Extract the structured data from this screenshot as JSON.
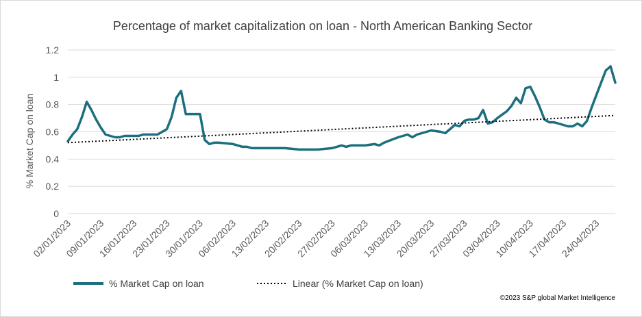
{
  "chart_data": {
    "type": "line",
    "title": "Percentage of market capitalization on loan - North American Banking Sector",
    "xlabel": "",
    "ylabel": "% Market Cap on loan",
    "ylim": [
      0,
      1.2
    ],
    "yticks": [
      0,
      0.2,
      0.4,
      0.6,
      0.8,
      1,
      1.2
    ],
    "ytick_labels": [
      "0",
      "0.2",
      "0.4",
      "0.6",
      "0.8",
      "1",
      "1.2"
    ],
    "xlim": [
      "2023-01-02",
      "2023-04-28"
    ],
    "xticks": [
      "2023-01-02",
      "2023-01-09",
      "2023-01-16",
      "2023-01-23",
      "2023-01-30",
      "2023-02-06",
      "2023-02-13",
      "2023-02-20",
      "2023-02-27",
      "2023-03-06",
      "2023-03-13",
      "2023-03-20",
      "2023-03-27",
      "2023-04-03",
      "2023-04-10",
      "2023-04-17",
      "2023-04-24"
    ],
    "xtick_labels": [
      "02/01/2023",
      "09/01/2023",
      "16/01/2023",
      "23/01/2023",
      "30/01/2023",
      "06/02/2023",
      "13/02/2023",
      "20/02/2023",
      "27/02/2023",
      "06/03/2023",
      "13/03/2023",
      "20/03/2023",
      "27/03/2023",
      "03/04/2023",
      "10/04/2023",
      "17/04/2023",
      "24/04/2023"
    ],
    "grid": true,
    "legend_position": "bottom-left",
    "series": [
      {
        "name": "% Market Cap on loan",
        "color": "#1b6f7e",
        "style": "solid",
        "points": [
          [
            "2023-01-02",
            0.53
          ],
          [
            "2023-01-03",
            0.58
          ],
          [
            "2023-01-04",
            0.62
          ],
          [
            "2023-01-05",
            0.71
          ],
          [
            "2023-01-06",
            0.82
          ],
          [
            "2023-01-07",
            0.76
          ],
          [
            "2023-01-08",
            0.69
          ],
          [
            "2023-01-09",
            0.63
          ],
          [
            "2023-01-10",
            0.58
          ],
          [
            "2023-01-11",
            0.57
          ],
          [
            "2023-01-12",
            0.56
          ],
          [
            "2023-01-13",
            0.56
          ],
          [
            "2023-01-14",
            0.57
          ],
          [
            "2023-01-15",
            0.57
          ],
          [
            "2023-01-16",
            0.57
          ],
          [
            "2023-01-17",
            0.57
          ],
          [
            "2023-01-18",
            0.58
          ],
          [
            "2023-01-19",
            0.58
          ],
          [
            "2023-01-20",
            0.58
          ],
          [
            "2023-01-21",
            0.58
          ],
          [
            "2023-01-22",
            0.6
          ],
          [
            "2023-01-23",
            0.62
          ],
          [
            "2023-01-24",
            0.71
          ],
          [
            "2023-01-25",
            0.85
          ],
          [
            "2023-01-26",
            0.9
          ],
          [
            "2023-01-27",
            0.73
          ],
          [
            "2023-01-28",
            0.73
          ],
          [
            "2023-01-29",
            0.73
          ],
          [
            "2023-01-30",
            0.73
          ],
          [
            "2023-01-31",
            0.54
          ],
          [
            "2023-02-01",
            0.51
          ],
          [
            "2023-02-02",
            0.52
          ],
          [
            "2023-02-03",
            0.52
          ],
          [
            "2023-02-06",
            0.51
          ],
          [
            "2023-02-07",
            0.5
          ],
          [
            "2023-02-08",
            0.49
          ],
          [
            "2023-02-09",
            0.49
          ],
          [
            "2023-02-10",
            0.48
          ],
          [
            "2023-02-13",
            0.48
          ],
          [
            "2023-02-14",
            0.48
          ],
          [
            "2023-02-15",
            0.48
          ],
          [
            "2023-02-16",
            0.48
          ],
          [
            "2023-02-17",
            0.48
          ],
          [
            "2023-02-20",
            0.47
          ],
          [
            "2023-02-24",
            0.47
          ],
          [
            "2023-02-27",
            0.48
          ],
          [
            "2023-02-28",
            0.49
          ],
          [
            "2023-03-01",
            0.5
          ],
          [
            "2023-03-02",
            0.49
          ],
          [
            "2023-03-03",
            0.5
          ],
          [
            "2023-03-06",
            0.5
          ],
          [
            "2023-03-08",
            0.51
          ],
          [
            "2023-03-09",
            0.5
          ],
          [
            "2023-03-10",
            0.52
          ],
          [
            "2023-03-13",
            0.56
          ],
          [
            "2023-03-15",
            0.58
          ],
          [
            "2023-03-16",
            0.56
          ],
          [
            "2023-03-17",
            0.58
          ],
          [
            "2023-03-18",
            0.59
          ],
          [
            "2023-03-20",
            0.61
          ],
          [
            "2023-03-22",
            0.6
          ],
          [
            "2023-03-23",
            0.59
          ],
          [
            "2023-03-24",
            0.62
          ],
          [
            "2023-03-25",
            0.65
          ],
          [
            "2023-03-26",
            0.64
          ],
          [
            "2023-03-27",
            0.68
          ],
          [
            "2023-03-28",
            0.69
          ],
          [
            "2023-03-29",
            0.69
          ],
          [
            "2023-03-30",
            0.7
          ],
          [
            "2023-03-31",
            0.76
          ],
          [
            "2023-04-01",
            0.66
          ],
          [
            "2023-04-02",
            0.67
          ],
          [
            "2023-04-03",
            0.7
          ],
          [
            "2023-04-05",
            0.75
          ],
          [
            "2023-04-06",
            0.79
          ],
          [
            "2023-04-07",
            0.85
          ],
          [
            "2023-04-08",
            0.81
          ],
          [
            "2023-04-09",
            0.92
          ],
          [
            "2023-04-10",
            0.93
          ],
          [
            "2023-04-11",
            0.86
          ],
          [
            "2023-04-12",
            0.78
          ],
          [
            "2023-04-13",
            0.69
          ],
          [
            "2023-04-14",
            0.67
          ],
          [
            "2023-04-15",
            0.67
          ],
          [
            "2023-04-16",
            0.66
          ],
          [
            "2023-04-17",
            0.65
          ],
          [
            "2023-04-18",
            0.64
          ],
          [
            "2023-04-19",
            0.64
          ],
          [
            "2023-04-20",
            0.66
          ],
          [
            "2023-04-21",
            0.64
          ],
          [
            "2023-04-22",
            0.68
          ],
          [
            "2023-04-23",
            0.78
          ],
          [
            "2023-04-24",
            0.87
          ],
          [
            "2023-04-25",
            0.96
          ],
          [
            "2023-04-26",
            1.05
          ],
          [
            "2023-04-27",
            1.08
          ],
          [
            "2023-04-28",
            0.96
          ]
        ]
      },
      {
        "name": "Linear (% Market Cap on loan)",
        "color": "#000000",
        "style": "dotted",
        "points": [
          [
            "2023-01-02",
            0.52
          ],
          [
            "2023-04-28",
            0.72
          ]
        ]
      }
    ]
  },
  "legend": {
    "items": [
      {
        "label": "% Market Cap on loan"
      },
      {
        "label": "Linear (% Market Cap on loan)"
      }
    ]
  },
  "credit": "©2023 S&P global Market Intelligence"
}
